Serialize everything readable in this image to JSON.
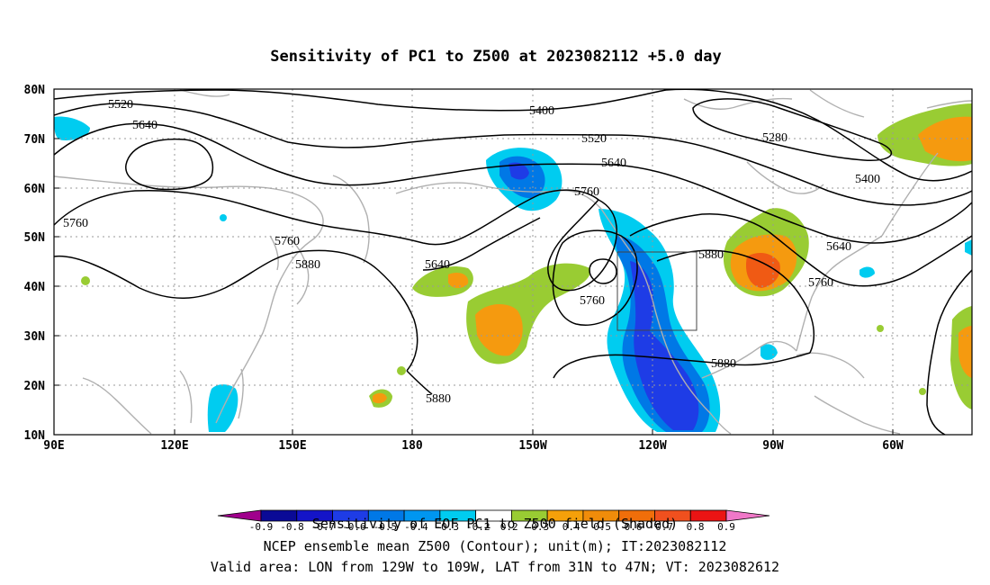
{
  "title": "Sensitivity of PC1 to Z500 at 2023082112 +5.0 day",
  "map": {
    "lat_labels": [
      "80N",
      "70N",
      "60N",
      "50N",
      "40N",
      "30N",
      "20N",
      "10N"
    ],
    "lon_labels": [
      "90E",
      "120E",
      "150E",
      "180",
      "150W",
      "120W",
      "90W",
      "60W"
    ],
    "contour_labels": [
      "5520",
      "5640",
      "5400",
      "5520",
      "5640",
      "5760",
      "5280",
      "5400",
      "5760",
      "5760",
      "5640",
      "5880",
      "5640",
      "5760",
      "5880",
      "5760",
      "5880",
      "5880"
    ],
    "valid_box": {
      "lon": "129W to 109W",
      "lat": "31N to 47N"
    },
    "colors": {
      "positive_low": "#99cc33",
      "positive_mid": "#f59a0f",
      "positive_high": "#f05a14",
      "negative_low": "#00ccf0",
      "negative_mid": "#0078e6",
      "negative_high": "#1e3ce6",
      "coast": "#b0b0b0",
      "contour": "#000000"
    }
  },
  "colorbar": {
    "tick_labels": [
      "-0.9",
      "-0.8",
      "-0.7",
      "-0.6",
      "-0.5",
      "-0.4",
      "-0.3",
      "-0.2",
      "0.2",
      "0.3",
      "0.4",
      "0.5",
      "0.6",
      "0.7",
      "0.8",
      "0.9"
    ],
    "segment_colors": [
      "#a0008c",
      "#0a0a96",
      "#1414c8",
      "#1e3ce6",
      "#0078e6",
      "#0096f0",
      "#00ccf0",
      "#ffffff",
      "#99cc33",
      "#f5a00a",
      "#f08c0a",
      "#f06e0a",
      "#f0501e",
      "#eb1414",
      "#f078c8"
    ]
  },
  "footer": {
    "line1": "Sensitivity of EOF PC1 to Z500 field (Shaded)",
    "line2": "NCEP ensemble mean Z500 (Contour); unit(m); IT:2023082112",
    "line3": "Valid area: LON from 129W to 109W, LAT from 31N to 47N; VT: 2023082612"
  }
}
